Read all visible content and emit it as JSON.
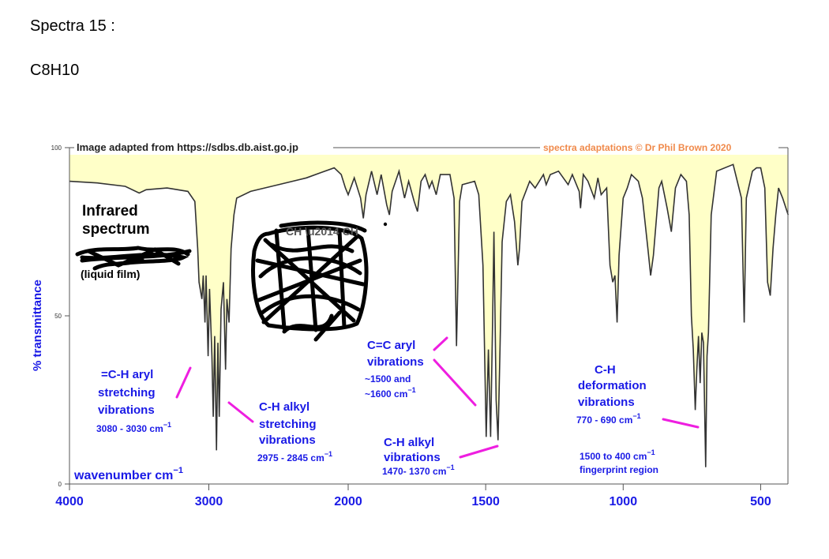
{
  "document": {
    "heading": "Spectra 15 :",
    "formula": "C8H10"
  },
  "chart_data": {
    "type": "line",
    "title": "Infrared spectrum",
    "subtitle": "(liquid film)",
    "xlabel": "wavenumber  cm",
    "xlabel_sup": "−1",
    "ylabel": "% transmittance",
    "xlim": [
      4000,
      400
    ],
    "ylim": [
      0,
      100
    ],
    "grid": false,
    "source_left": "Image adapted from https://sdbs.db.aist.go.jp",
    "source_right": "spectra adaptations © Dr Phil Brown 2020",
    "x_ticks": [
      {
        "value": 4000,
        "label": "4000"
      },
      {
        "value": 3000,
        "label": "3000"
      },
      {
        "value": 2000,
        "label": "2000"
      },
      {
        "value": 1500,
        "label": "1500"
      },
      {
        "value": 1000,
        "label": "1000"
      },
      {
        "value": 500,
        "label": "500"
      }
    ],
    "y_ticks": [
      {
        "value": 100,
        "label": "100"
      },
      {
        "value": 50,
        "label": "50"
      },
      {
        "value": 0,
        "label": "0"
      }
    ],
    "series": [
      {
        "color": "#333333",
        "fill": "#ffffc8",
        "points": [
          [
            4000,
            90
          ],
          [
            3800,
            89.5
          ],
          [
            3600,
            88.5
          ],
          [
            3500,
            86.5
          ],
          [
            3450,
            87.5
          ],
          [
            3300,
            88
          ],
          [
            3150,
            87
          ],
          [
            3100,
            84
          ],
          [
            3080,
            70
          ],
          [
            3070,
            60
          ],
          [
            3050,
            55
          ],
          [
            3040,
            62
          ],
          [
            3028,
            48
          ],
          [
            3020,
            62
          ],
          [
            3005,
            38
          ],
          [
            2995,
            58
          ],
          [
            2978,
            38
          ],
          [
            2968,
            20
          ],
          [
            2958,
            44
          ],
          [
            2945,
            10
          ],
          [
            2935,
            42
          ],
          [
            2925,
            20
          ],
          [
            2912,
            52
          ],
          [
            2895,
            60
          ],
          [
            2880,
            34
          ],
          [
            2870,
            55
          ],
          [
            2855,
            48
          ],
          [
            2840,
            70
          ],
          [
            2820,
            80
          ],
          [
            2800,
            85
          ],
          [
            2700,
            87
          ],
          [
            2600,
            88
          ],
          [
            2500,
            89
          ],
          [
            2300,
            91
          ],
          [
            2200,
            92.5
          ],
          [
            2100,
            94
          ],
          [
            2050,
            92
          ],
          [
            2020,
            88
          ],
          [
            2000,
            86
          ],
          [
            1978,
            91
          ],
          [
            1955,
            85
          ],
          [
            1945,
            79
          ],
          [
            1935,
            86
          ],
          [
            1915,
            93
          ],
          [
            1895,
            86
          ],
          [
            1880,
            92
          ],
          [
            1860,
            83
          ],
          [
            1850,
            80
          ],
          [
            1840,
            87
          ],
          [
            1815,
            93
          ],
          [
            1795,
            85
          ],
          [
            1780,
            90
          ],
          [
            1760,
            84
          ],
          [
            1748,
            81
          ],
          [
            1735,
            90
          ],
          [
            1720,
            92
          ],
          [
            1705,
            88
          ],
          [
            1695,
            90
          ],
          [
            1680,
            86
          ],
          [
            1665,
            92
          ],
          [
            1630,
            92
          ],
          [
            1615,
            85
          ],
          [
            1606,
            41
          ],
          [
            1595,
            84
          ],
          [
            1585,
            89
          ],
          [
            1540,
            90
          ],
          [
            1525,
            86
          ],
          [
            1510,
            65
          ],
          [
            1498,
            14
          ],
          [
            1490,
            40
          ],
          [
            1482,
            14
          ],
          [
            1475,
            48
          ],
          [
            1470,
            75
          ],
          [
            1462,
            25
          ],
          [
            1455,
            13
          ],
          [
            1448,
            40
          ],
          [
            1440,
            72
          ],
          [
            1425,
            84
          ],
          [
            1410,
            86
          ],
          [
            1395,
            78
          ],
          [
            1383,
            65
          ],
          [
            1377,
            70
          ],
          [
            1368,
            84
          ],
          [
            1340,
            90
          ],
          [
            1320,
            88
          ],
          [
            1305,
            90
          ],
          [
            1290,
            92
          ],
          [
            1280,
            89
          ],
          [
            1265,
            92
          ],
          [
            1235,
            93
          ],
          [
            1200,
            89
          ],
          [
            1185,
            92
          ],
          [
            1160,
            87
          ],
          [
            1155,
            82
          ],
          [
            1145,
            92
          ],
          [
            1128,
            90
          ],
          [
            1105,
            85
          ],
          [
            1092,
            91
          ],
          [
            1080,
            86
          ],
          [
            1060,
            88
          ],
          [
            1048,
            65
          ],
          [
            1038,
            60
          ],
          [
            1030,
            62
          ],
          [
            1022,
            48
          ],
          [
            1015,
            68
          ],
          [
            1000,
            85
          ],
          [
            985,
            88
          ],
          [
            970,
            92
          ],
          [
            945,
            90
          ],
          [
            930,
            85
          ],
          [
            910,
            70
          ],
          [
            900,
            62
          ],
          [
            890,
            68
          ],
          [
            870,
            88
          ],
          [
            860,
            90
          ],
          [
            840,
            82
          ],
          [
            825,
            75
          ],
          [
            810,
            88
          ],
          [
            790,
            92
          ],
          [
            770,
            90
          ],
          [
            760,
            80
          ],
          [
            752,
            50
          ],
          [
            745,
            40
          ],
          [
            738,
            22
          ],
          [
            732,
            34
          ],
          [
            726,
            44
          ],
          [
            720,
            30
          ],
          [
            714,
            45
          ],
          [
            708,
            42
          ],
          [
            700,
            5
          ],
          [
            695,
            38
          ],
          [
            690,
            45
          ],
          [
            680,
            80
          ],
          [
            660,
            93
          ],
          [
            600,
            95
          ],
          [
            570,
            85
          ],
          [
            560,
            48
          ],
          [
            552,
            85
          ],
          [
            530,
            93
          ],
          [
            515,
            94
          ],
          [
            500,
            94
          ],
          [
            485,
            88
          ],
          [
            475,
            60
          ],
          [
            465,
            56
          ],
          [
            455,
            70
          ],
          [
            445,
            80
          ],
          [
            435,
            88
          ],
          [
            420,
            85
          ],
          [
            400,
            80
          ]
        ]
      }
    ],
    "annotations": [
      {
        "id": "ch-aryl",
        "lines": [
          "=C-H aryl",
          "stretching",
          "vibrations"
        ],
        "range": "3080 - 3030 cm",
        "sup": "−1"
      },
      {
        "id": "ch-alkyl-stretch",
        "lines": [
          "C-H alkyl",
          "stretching",
          "vibrations"
        ],
        "range": "2975 - 2845 cm",
        "sup": "−1"
      },
      {
        "id": "cc-aryl",
        "lines": [
          "C=C aryl",
          "vibrations"
        ],
        "range_lines": [
          "~1500 and",
          "~1600 cm"
        ],
        "sup": "−1"
      },
      {
        "id": "ch-alkyl-vib",
        "lines": [
          "C-H alkyl",
          "vibrations"
        ],
        "range": "1470- 1370 cm",
        "sup": "−1"
      },
      {
        "id": "ch-deform",
        "lines": [
          "C-H",
          "deformation",
          "vibrations"
        ],
        "range": "770 - 690 cm",
        "sup": "−1"
      },
      {
        "id": "fingerprint",
        "lines": [
          "1500 to 400 cm"
        ],
        "sup": "−1",
        "extra": "fingerprint region"
      }
    ]
  }
}
